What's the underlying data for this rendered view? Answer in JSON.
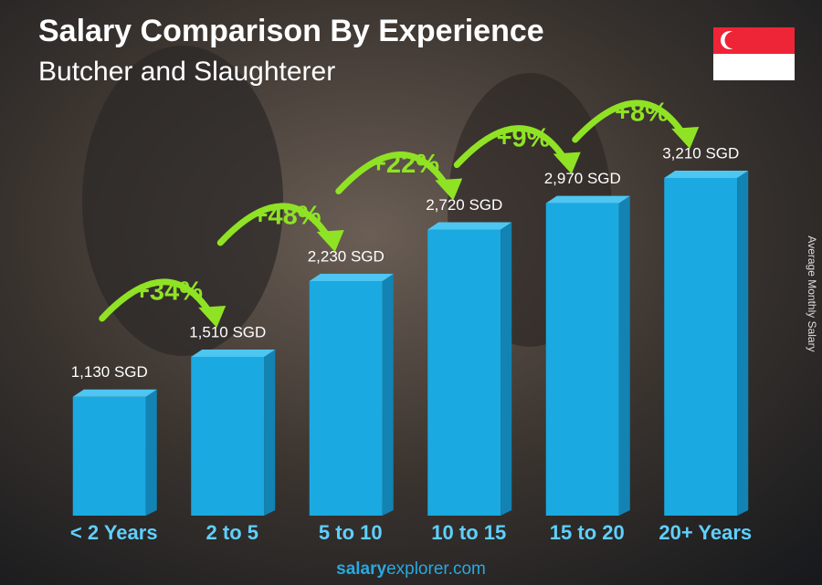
{
  "chart_data": {
    "type": "bar",
    "title": "Salary Comparison By Experience",
    "subtitle": "Butcher and Slaughterer",
    "y_label": "Average Monthly Salary",
    "categories": [
      "< 2 Years",
      "2 to 5",
      "5 to 10",
      "10 to 15",
      "15 to 20",
      "20+ Years"
    ],
    "values": [
      1130,
      1510,
      2230,
      2720,
      2970,
      3210
    ],
    "value_labels": [
      "1,130 SGD",
      "1,510 SGD",
      "2,230 SGD",
      "2,720 SGD",
      "2,970 SGD",
      "3,210 SGD"
    ],
    "changes": [
      "+34%",
      "+48%",
      "+22%",
      "+9%",
      "+8%"
    ],
    "color": "#1ba9e1",
    "change_color": "#8fe324",
    "footer": {
      "brand": "salary",
      "domain": "explorer.com"
    }
  }
}
